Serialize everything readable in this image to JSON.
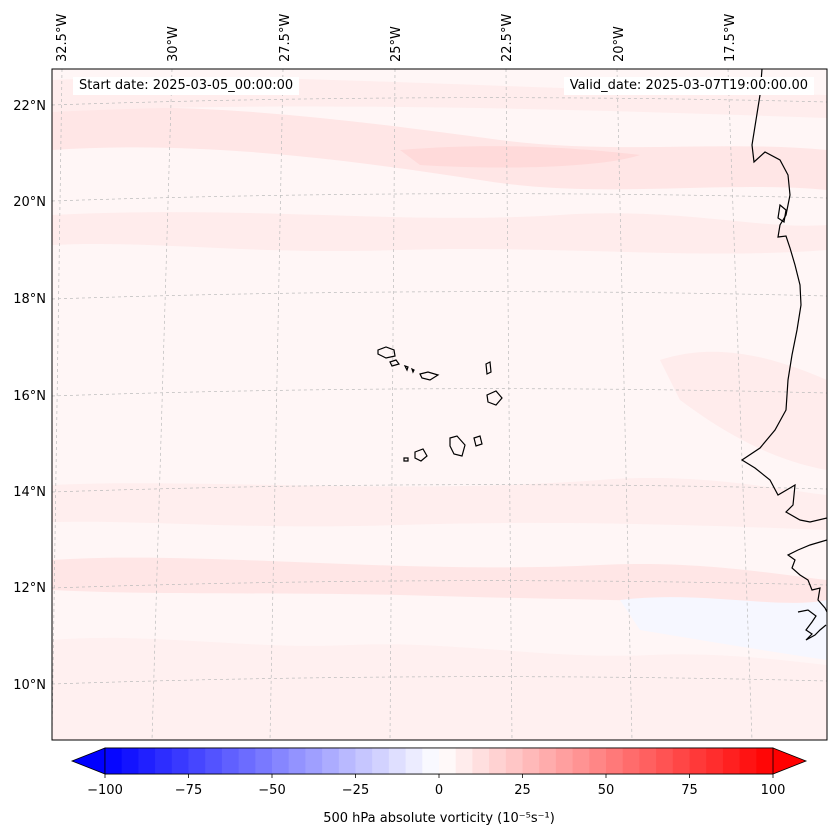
{
  "map": {
    "title": "",
    "start_label": "Start date: 2025-03-05_00:00:00",
    "valid_label": "Valid_date: 2025-03-07T19:00:00.00",
    "lon_labels": [
      "32.5°W",
      "30°W",
      "27.5°W",
      "25°W",
      "22.5°W",
      "20°W",
      "17.5°W"
    ],
    "lat_labels": [
      "22°N",
      "20°N",
      "18°N",
      "16°N",
      "14°N",
      "12°N",
      "10°N"
    ],
    "extent": {
      "lon_min": -32.8,
      "lon_max": -15.4,
      "lat_min": 8.9,
      "lat_max": 22.8
    },
    "projection": "Lambert conformal",
    "gridlines": "dashed grey"
  },
  "colorbar": {
    "label": "500 hPa absolute vorticity (10⁻⁵s⁻¹)",
    "ticks": [
      "−100",
      "−75",
      "−50",
      "−25",
      "0",
      "25",
      "50",
      "75",
      "100"
    ],
    "range": [
      -100,
      100
    ],
    "cmap": "bwr",
    "color_min": "#0000ff",
    "color_mid": "#ffffff",
    "color_max": "#ff0000",
    "extend": "both"
  },
  "features": [
    "Cape Verde islands",
    "West African coastline"
  ]
}
